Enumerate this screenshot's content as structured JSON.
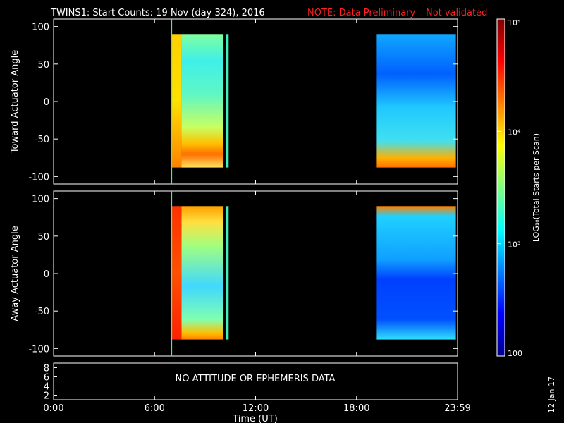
{
  "title": {
    "main": "TWINS1: Start Counts: 19 Nov (day 324), 2016",
    "note": "NOTE: Data Preliminary – Not validated"
  },
  "date_stamp": "12 Jan 17",
  "colors": {
    "background": "#000000",
    "axis": "#ffffff",
    "note": "#ff2020"
  },
  "chart_data": [
    {
      "type": "heatmap",
      "name": "toward-panel",
      "ylabel": "Toward Actuator Angle",
      "ylim": [
        -110,
        110
      ],
      "y_ticks": [
        -100,
        -50,
        0,
        50,
        100
      ],
      "xlim": [
        0,
        24
      ],
      "x_ticks": [
        0,
        6,
        12,
        18,
        24
      ],
      "blocks": [
        {
          "t_start": 7.0,
          "t_end": 7.6,
          "angle_min": -88,
          "angle_max": 90,
          "level": "high"
        },
        {
          "t_start": 7.6,
          "t_end": 10.1,
          "angle_min": -88,
          "angle_max": 90,
          "level": "mid"
        },
        {
          "t_start": 10.1,
          "t_end": 10.25,
          "angle_min": -88,
          "angle_max": 90,
          "level": "none"
        },
        {
          "t_start": 10.25,
          "t_end": 10.4,
          "angle_min": -88,
          "angle_max": 90,
          "level": "low-mid"
        },
        {
          "t_start": 19.2,
          "t_end": 23.9,
          "angle_min": -88,
          "angle_max": 90,
          "level": "low"
        }
      ],
      "marker_time": 7.0
    },
    {
      "type": "heatmap",
      "name": "away-panel",
      "ylabel": "Away Actuator Angle",
      "ylim": [
        -110,
        110
      ],
      "y_ticks": [
        -100,
        -50,
        0,
        50,
        100
      ],
      "xlim": [
        0,
        24
      ],
      "x_ticks": [
        0,
        6,
        12,
        18,
        24
      ],
      "blocks": [
        {
          "t_start": 7.0,
          "t_end": 7.6,
          "angle_min": -88,
          "angle_max": 90,
          "level": "high"
        },
        {
          "t_start": 7.6,
          "t_end": 10.1,
          "angle_min": -88,
          "angle_max": 90,
          "level": "mid"
        },
        {
          "t_start": 10.1,
          "t_end": 10.25,
          "angle_min": -88,
          "angle_max": 90,
          "level": "none"
        },
        {
          "t_start": 10.25,
          "t_end": 10.4,
          "angle_min": -88,
          "angle_max": 90,
          "level": "low-mid"
        },
        {
          "t_start": 19.2,
          "t_end": 23.9,
          "angle_min": -88,
          "angle_max": 90,
          "level": "low"
        }
      ],
      "marker_time": 7.0
    },
    {
      "type": "line",
      "name": "ephemeris-panel",
      "message": "NO ATTITUDE OR EPHEMERIS DATA",
      "ylim": [
        1,
        9
      ],
      "y_ticks": [
        2,
        4,
        6,
        8
      ],
      "xlim": [
        0,
        24
      ],
      "x_ticks": [
        0,
        6,
        12,
        18,
        24
      ],
      "x_tick_labels": [
        "0:00",
        "6:00",
        "12:00",
        "18:00",
        "23:59"
      ],
      "xlabel": "Time (UT)"
    }
  ],
  "colorbar": {
    "scale": "log",
    "range": [
      100,
      100000
    ],
    "tick_labels": [
      "10⁵",
      "10⁴",
      "10³",
      "100"
    ],
    "tick_values": [
      100000,
      10000,
      1000,
      100
    ],
    "label": "LOG₁₀(Total Starts per Scan)"
  }
}
